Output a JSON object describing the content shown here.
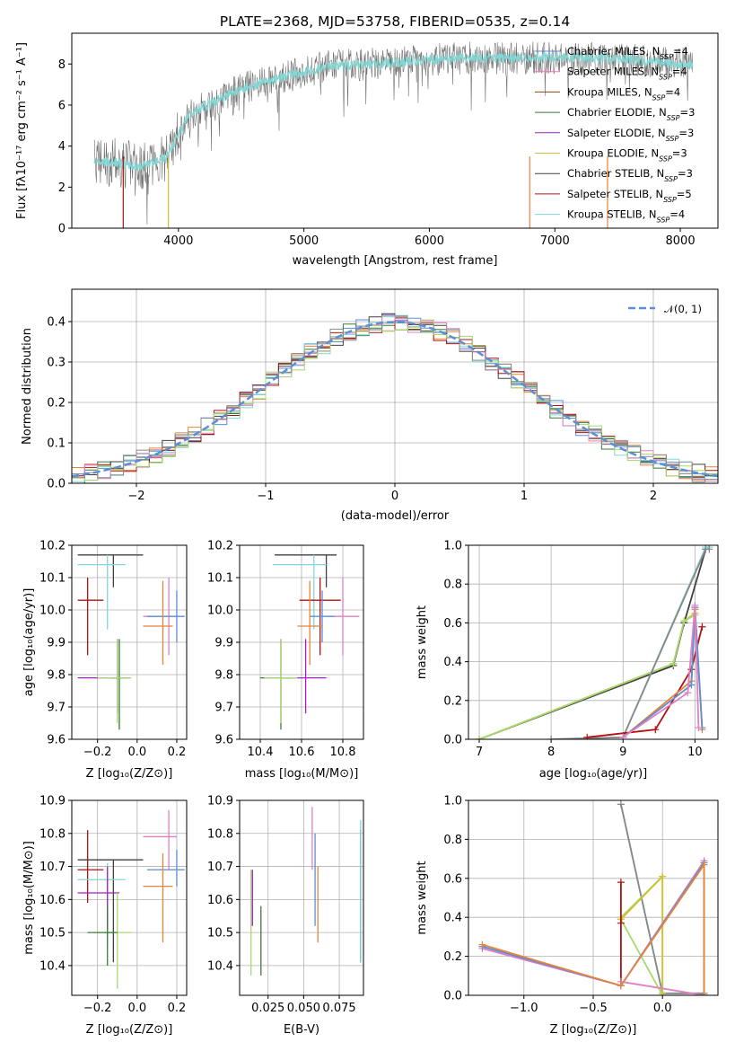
{
  "colors": {
    "c1": "#5b8fd6",
    "c2": "#e8833a",
    "c3": "#8b4513",
    "c4": "#3a7a3a",
    "c5": "#a020c0",
    "c6": "#d2c030",
    "c7": "#404040",
    "c8": "#b01010",
    "c9": "#80d8d8",
    "c10": "#e080c0",
    "c11": "#a8d870",
    "c12": "#888888",
    "c13": "#ff69b4"
  },
  "chart_data": [
    {
      "id": "spectrum",
      "type": "line",
      "title": "PLATE=2368, MJD=53758, FIBERID=0535, z=0.14",
      "xlabel": "wavelength [Angstrom, rest frame]",
      "ylabel": "Flux [fλ10⁻¹⁷ erg cm⁻² s⁻¹ A⁻¹]",
      "xlim": [
        3150,
        8300
      ],
      "ylim": [
        0,
        9.5
      ],
      "xticks": [
        "4000",
        "5000",
        "6000",
        "7000",
        "8000"
      ],
      "yticks": [
        "0",
        "2",
        "4",
        "6",
        "8"
      ],
      "legend_position": "upper-right",
      "continuum": {
        "x": [
          3330,
          3500,
          3700,
          3900,
          4000,
          4100,
          4300,
          4500,
          4800,
          5000,
          5200,
          5500,
          5800,
          6000,
          6300,
          6600,
          7000,
          7300,
          7600,
          8000,
          8100
        ],
        "y": [
          3.3,
          3.2,
          3.0,
          3.4,
          4.6,
          5.6,
          6.2,
          6.8,
          7.3,
          7.6,
          7.9,
          8.0,
          8.1,
          8.2,
          8.3,
          8.3,
          8.3,
          8.3,
          8.2,
          8.0,
          8.0
        ]
      },
      "series": [
        {
          "label": "Chabrier MILES, N",
          "sub": "SSP",
          "value": "=4",
          "color": "c1"
        },
        {
          "label": "Salpeter MILES, N",
          "sub": "SSP",
          "value": "=4",
          "color": "c13"
        },
        {
          "label": "Kroupa MILES, N",
          "sub": "SSP",
          "value": "=4",
          "color": "c3"
        },
        {
          "label": "Chabrier ELODIE, N",
          "sub": "SSP",
          "value": "=3",
          "color": "c4"
        },
        {
          "label": "Salpeter ELODIE, N",
          "sub": "SSP",
          "value": "=3",
          "color": "c5"
        },
        {
          "label": "Kroupa ELODIE, N",
          "sub": "SSP",
          "value": "=3",
          "color": "c6"
        },
        {
          "label": "Chabrier STELIB, N",
          "sub": "SSP",
          "value": "=3",
          "color": "c7"
        },
        {
          "label": "Salpeter STELIB, N",
          "sub": "SSP",
          "value": "=5",
          "color": "c8"
        },
        {
          "label": "Kroupa STELIB, N",
          "sub": "SSP",
          "value": "=4",
          "color": "c9"
        }
      ]
    },
    {
      "id": "residual-histogram",
      "type": "bar",
      "xlabel": "(data-model)/error",
      "ylabel": "Normed distribution",
      "xlim": [
        -2.5,
        2.5
      ],
      "ylim": [
        0,
        0.48
      ],
      "xticks": [
        {
          "v": -2,
          "t": "−2"
        },
        {
          "v": -1,
          "t": "−1"
        },
        {
          "v": 0,
          "t": "0"
        },
        {
          "v": 1,
          "t": "1"
        },
        {
          "v": 2,
          "t": "2"
        }
      ],
      "yticks": [
        "0.0",
        "0.1",
        "0.2",
        "0.3",
        "0.4"
      ],
      "bin_width": 0.1,
      "legend": {
        "label": "𝒩(0, 1)",
        "position": "upper-right"
      },
      "gaussian": {
        "mean": 0,
        "sigma": 1,
        "color": "c1"
      },
      "series_colors": [
        "c1",
        "c2",
        "c4",
        "c7",
        "c8",
        "c9",
        "c10",
        "c11",
        "c12"
      ]
    },
    {
      "id": "age-vs-Z",
      "type": "scatter",
      "xlabel": "Z [log₁₀(Z/Z⊙)]",
      "ylabel": "age  [log₁₀(age/yr)]",
      "xlim": [
        -0.33,
        0.25
      ],
      "ylim": [
        9.6,
        10.2
      ],
      "xticks": [
        {
          "v": -0.2,
          "t": "−0.2"
        },
        {
          "v": 0,
          "t": "0.0"
        },
        {
          "v": 0.2,
          "t": "0.2"
        }
      ],
      "yticks": [
        "9.6",
        "9.7",
        "9.8",
        "9.9",
        "10.0",
        "10.1",
        "10.2"
      ],
      "errorbars": [
        {
          "x": -0.12,
          "xerr": [
            0.18,
            0.15
          ],
          "y": 10.17,
          "yerr": [
            0.1,
            0.0
          ],
          "color": "c7"
        },
        {
          "x": -0.15,
          "xerr": [
            0.15,
            0.09
          ],
          "y": 10.14,
          "yerr": [
            0.2,
            0.03
          ],
          "color": "c9"
        },
        {
          "x": -0.25,
          "xerr": [
            0.05,
            0.08
          ],
          "y": 10.03,
          "yerr": [
            0.17,
            0.07
          ],
          "color": "c8"
        },
        {
          "x": 0.16,
          "xerr": [
            0.13,
            0.04
          ],
          "y": 9.98,
          "yerr": [
            0.12,
            0.12
          ],
          "color": "c10"
        },
        {
          "x": 0.2,
          "xerr": [
            0.15,
            0.04
          ],
          "y": 9.98,
          "yerr": [
            0.08,
            0.08
          ],
          "color": "c1"
        },
        {
          "x": 0.13,
          "xerr": [
            0.1,
            0.05
          ],
          "y": 9.95,
          "yerr": [
            0.12,
            0.14
          ],
          "color": "c2"
        },
        {
          "x": -0.1,
          "xerr": [
            0.2,
            0.06
          ],
          "y": 9.79,
          "yerr": [
            0.11,
            0.12
          ],
          "color": "c5"
        },
        {
          "x": -0.09,
          "xerr": [
            0.04,
            0.02
          ],
          "y": 9.79,
          "yerr": [
            0.16,
            0.12
          ],
          "color": "c4"
        },
        {
          "x": -0.1,
          "xerr": [
            0.1,
            0.07
          ],
          "y": 9.79,
          "yerr": [
            0.14,
            0.12
          ],
          "color": "c11"
        }
      ]
    },
    {
      "id": "age-vs-mass",
      "type": "scatter",
      "xlabel": "mass [log₁₀(M/M⊙)]",
      "ylabel": "",
      "xlim": [
        10.3,
        10.9
      ],
      "ylim": [
        9.6,
        10.2
      ],
      "xticks": [
        "10.4",
        "10.6",
        "10.8"
      ],
      "yticks": [
        "9.6",
        "9.7",
        "9.8",
        "9.9",
        "10.0",
        "10.1",
        "10.2"
      ],
      "errorbars": [
        {
          "x": 10.72,
          "xerr": [
            0.25,
            0.05
          ],
          "y": 10.17,
          "yerr": [
            0.1,
            0.0
          ],
          "color": "c7"
        },
        {
          "x": 10.66,
          "xerr": [
            0.2,
            0.06
          ],
          "y": 10.14,
          "yerr": [
            0.2,
            0.03
          ],
          "color": "c9"
        },
        {
          "x": 10.69,
          "xerr": [
            0.1,
            0.1
          ],
          "y": 10.03,
          "yerr": [
            0.17,
            0.07
          ],
          "color": "c8"
        },
        {
          "x": 10.8,
          "xerr": [
            0.08,
            0.08
          ],
          "y": 9.98,
          "yerr": [
            0.12,
            0.12
          ],
          "color": "c10"
        },
        {
          "x": 10.7,
          "xerr": [
            0.06,
            0.06
          ],
          "y": 9.98,
          "yerr": [
            0.08,
            0.08
          ],
          "color": "c1"
        },
        {
          "x": 10.64,
          "xerr": [
            0.06,
            0.06
          ],
          "y": 9.95,
          "yerr": [
            0.12,
            0.14
          ],
          "color": "c2"
        },
        {
          "x": 10.62,
          "xerr": [
            0.1,
            0.1
          ],
          "y": 9.79,
          "yerr": [
            0.11,
            0.12
          ],
          "color": "c5"
        },
        {
          "x": 10.5,
          "xerr": [
            0.1,
            0.05
          ],
          "y": 9.79,
          "yerr": [
            0.16,
            0.12
          ],
          "color": "c4"
        },
        {
          "x": 10.5,
          "xerr": [
            0.08,
            0.08
          ],
          "y": 9.79,
          "yerr": [
            0.14,
            0.12
          ],
          "color": "c11"
        }
      ]
    },
    {
      "id": "cumulative-weight-age",
      "type": "line",
      "xlabel": "age  [log₁₀(age/yr)]",
      "ylabel": "mass weight",
      "xlim": [
        6.85,
        10.32
      ],
      "ylim": [
        0,
        1
      ],
      "xticks": [
        "7",
        "8",
        "9",
        "10"
      ],
      "yticks": [
        "0.0",
        "0.2",
        "0.4",
        "0.6",
        "0.8",
        "1.0"
      ],
      "series": [
        {
          "color": "c7",
          "x": [
            7.0,
            9.7,
            9.85,
            10.15
          ],
          "y": [
            0.0,
            0.38,
            0.6,
            0.98
          ]
        },
        {
          "color": "c6",
          "x": [
            7.0,
            9.7,
            9.85,
            10.0
          ],
          "y": [
            0.0,
            0.39,
            0.61,
            0.65
          ]
        },
        {
          "color": "c11",
          "x": [
            7.0,
            9.7,
            9.85,
            10.0
          ],
          "y": [
            0.0,
            0.39,
            0.61,
            0.64
          ]
        },
        {
          "color": "c9",
          "x": [
            8.0,
            9.0,
            10.15,
            10.2
          ],
          "y": [
            0.0,
            0.01,
            0.99,
            0.99
          ]
        },
        {
          "color": "c12",
          "x": [
            8.0,
            9.0,
            10.15,
            10.2
          ],
          "y": [
            0.0,
            0.01,
            0.98,
            0.98
          ]
        },
        {
          "color": "c8",
          "x": [
            8.5,
            9.45,
            9.95,
            10.1
          ],
          "y": [
            0.01,
            0.05,
            0.36,
            0.58
          ]
        },
        {
          "color": "c2",
          "x": [
            9.0,
            9.95,
            10.0,
            10.1
          ],
          "y": [
            0.01,
            0.3,
            0.67,
            0.05
          ]
        },
        {
          "color": "c1",
          "x": [
            9.0,
            9.95,
            10.0,
            10.1
          ],
          "y": [
            0.01,
            0.28,
            0.68,
            0.06
          ]
        },
        {
          "color": "c10",
          "x": [
            9.0,
            9.9,
            10.0,
            10.05
          ],
          "y": [
            0.01,
            0.24,
            0.69,
            0.06
          ]
        }
      ]
    },
    {
      "id": "mass-vs-Z",
      "type": "scatter",
      "xlabel": "Z [log₁₀(Z/Z⊙)]",
      "ylabel": "mass [log₁₀(M/M⊙)]",
      "xlim": [
        -0.33,
        0.25
      ],
      "ylim": [
        10.31,
        10.9
      ],
      "xticks": [
        {
          "v": -0.2,
          "t": "−0.2"
        },
        {
          "v": 0,
          "t": "0.0"
        },
        {
          "v": 0.2,
          "t": "0.2"
        }
      ],
      "yticks": [
        "10.4",
        "10.5",
        "10.6",
        "10.7",
        "10.8",
        "10.9"
      ],
      "errorbars": [
        {
          "x": -0.12,
          "xerr": [
            0.18,
            0.15
          ],
          "y": 10.72,
          "yerr": [
            0.31,
            0.0
          ],
          "color": "c7"
        },
        {
          "x": -0.25,
          "xerr": [
            0.05,
            0.08
          ],
          "y": 10.69,
          "yerr": [
            0.1,
            0.12
          ],
          "color": "c8"
        },
        {
          "x": -0.15,
          "xerr": [
            0.15,
            0.09
          ],
          "y": 10.66,
          "yerr": [
            0.2,
            0.05
          ],
          "color": "c9"
        },
        {
          "x": 0.16,
          "xerr": [
            0.13,
            0.04
          ],
          "y": 10.79,
          "yerr": [
            0.1,
            0.08
          ],
          "color": "c10"
        },
        {
          "x": 0.2,
          "xerr": [
            0.15,
            0.04
          ],
          "y": 10.69,
          "yerr": [
            0.05,
            0.06
          ],
          "color": "c1"
        },
        {
          "x": 0.13,
          "xerr": [
            0.1,
            0.05
          ],
          "y": 10.64,
          "yerr": [
            0.17,
            0.1
          ],
          "color": "c2"
        },
        {
          "x": -0.15,
          "xerr": [
            0.15,
            0.06
          ],
          "y": 10.62,
          "yerr": [
            0.11,
            0.08
          ],
          "color": "c5"
        },
        {
          "x": -0.1,
          "xerr": [
            0.1,
            0.07
          ],
          "y": 10.5,
          "yerr": [
            0.17,
            0.12
          ],
          "color": "c11"
        },
        {
          "x": -0.15,
          "xerr": [
            0.1,
            0.05
          ],
          "y": 10.5,
          "yerr": [
            0.1,
            0.08
          ],
          "color": "c4"
        }
      ]
    },
    {
      "id": "mass-vs-ebv",
      "type": "scatter",
      "xlabel": "E(B-V)",
      "ylabel": "",
      "xlim": [
        0.005,
        0.092
      ],
      "ylim": [
        10.31,
        10.9
      ],
      "xticks": [
        "0.025",
        "0.050",
        "0.075"
      ],
      "yticks": [
        "10.4",
        "10.5",
        "10.6",
        "10.7",
        "10.8",
        "10.9"
      ],
      "errorbars": [
        {
          "x": 0.013,
          "y": 10.56,
          "yerr": [
            0.19,
            0.13
          ],
          "color": "c11"
        },
        {
          "x": 0.014,
          "y": 10.62,
          "yerr": [
            0.1,
            0.07
          ],
          "color": "c5"
        },
        {
          "x": 0.02,
          "y": 10.5,
          "yerr": [
            0.13,
            0.08
          ],
          "color": "c4"
        },
        {
          "x": 0.056,
          "y": 10.79,
          "yerr": [
            0.1,
            0.09
          ],
          "color": "c10"
        },
        {
          "x": 0.058,
          "y": 10.69,
          "yerr": [
            0.17,
            0.11
          ],
          "color": "c1"
        },
        {
          "x": 0.06,
          "y": 10.64,
          "yerr": [
            0.17,
            0.06
          ],
          "color": "c2"
        },
        {
          "x": 0.09,
          "y": 10.69,
          "yerr": [
            0.28,
            0.12
          ],
          "color": "c8"
        },
        {
          "x": 0.09,
          "y": 10.72,
          "yerr": [
            0.31,
            0.12
          ],
          "color": "c9"
        }
      ]
    },
    {
      "id": "cumulative-weight-Z",
      "type": "line",
      "xlabel": "Z [log₁₀(Z/Z⊙)]",
      "ylabel": "mass weight",
      "xlim": [
        -1.4,
        0.4
      ],
      "ylim": [
        0,
        1
      ],
      "xticks": [
        {
          "v": -1.0,
          "t": "−1.0"
        },
        {
          "v": -0.5,
          "t": "−0.5"
        },
        {
          "v": 0.0,
          "t": "0.0"
        }
      ],
      "yticks": [
        "0.0",
        "0.2",
        "0.4",
        "0.6",
        "0.8",
        "1.0"
      ],
      "series": [
        {
          "color": "c9",
          "x": [
            -0.3,
            0.0,
            0.3
          ],
          "y": [
            0.98,
            0.01,
            0.01
          ]
        },
        {
          "color": "c12",
          "x": [
            -0.3,
            0.0,
            0.3
          ],
          "y": [
            0.98,
            0.01,
            0.01
          ]
        },
        {
          "color": "c11",
          "x": [
            -0.3,
            0.0,
            0.0,
            -0.3
          ],
          "y": [
            0.4,
            0.61,
            0.0,
            0.39
          ]
        },
        {
          "color": "c6",
          "x": [
            -0.3,
            0.0,
            0.0
          ],
          "y": [
            0.39,
            0.61,
            0.01
          ]
        },
        {
          "color": "c8",
          "x": [
            -0.3,
            -0.3,
            -0.3
          ],
          "y": [
            0.05,
            0.37,
            0.58
          ]
        },
        {
          "color": "c10",
          "x": [
            -1.3,
            -0.3,
            0.3,
            0.3,
            -0.3
          ],
          "y": [
            0.24,
            0.05,
            0.69,
            0.0,
            0.07
          ]
        },
        {
          "color": "c1",
          "x": [
            -1.3,
            -0.3,
            0.3,
            0.3
          ],
          "y": [
            0.25,
            0.05,
            0.68,
            0.0
          ]
        },
        {
          "color": "c2",
          "x": [
            -1.3,
            -0.3,
            0.3,
            0.3
          ],
          "y": [
            0.26,
            0.05,
            0.67,
            0.0
          ]
        }
      ]
    }
  ]
}
